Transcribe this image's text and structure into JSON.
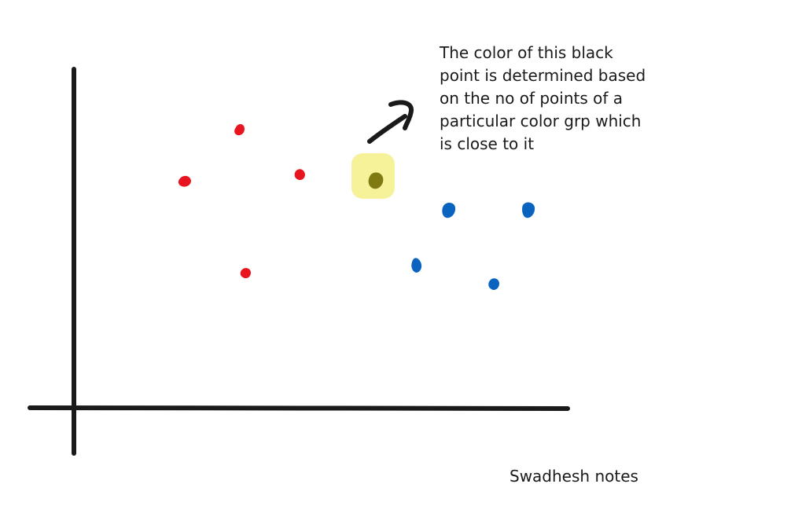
{
  "note": {
    "lines": [
      "The color of this black",
      "point is determined based",
      "on the no of points of a",
      "particular color grp which",
      "is close to it"
    ]
  },
  "signature": "Swadhesh notes",
  "colors": {
    "axis": "#1a1a1a",
    "red_points": "#e8141f",
    "blue_points": "#0a64bf",
    "query_point": "#7f7a12",
    "highlight": "#f6f29a",
    "arrow": "#1a1a1a"
  },
  "groups": {
    "red": 4,
    "blue": 4,
    "query": 1
  }
}
